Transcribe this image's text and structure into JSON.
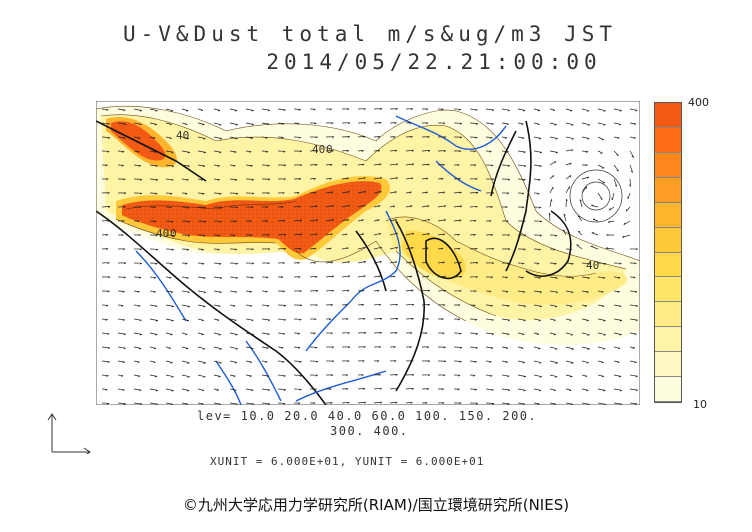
{
  "title": {
    "line1": "U-V&Dust total m/s&ug/m3 JST",
    "line2": "2014/05/22.21:00:00"
  },
  "colorbar": {
    "max_label": "400",
    "min_label": "10",
    "colors": [
      "#fffde0",
      "#fff8c4",
      "#fff3a6",
      "#ffec86",
      "#ffe566",
      "#ffd94a",
      "#ffc93a",
      "#ffb42e",
      "#ff9e24",
      "#ff871c",
      "#ff6e16",
      "#f35a14"
    ]
  },
  "levels": {
    "line1": "lev= 10.0 20.0 40.0 60.0 100. 150. 200.",
    "line2": "300. 400."
  },
  "units": "XUNIT = 6.000E+01, YUNIT = 6.000E+01",
  "contour_labels": [
    "40",
    "40",
    "0",
    "40",
    "0",
    "40"
  ],
  "copyright": "©九州大学応用力学研究所(RIAM)/国立環境研究所(NIES)"
}
